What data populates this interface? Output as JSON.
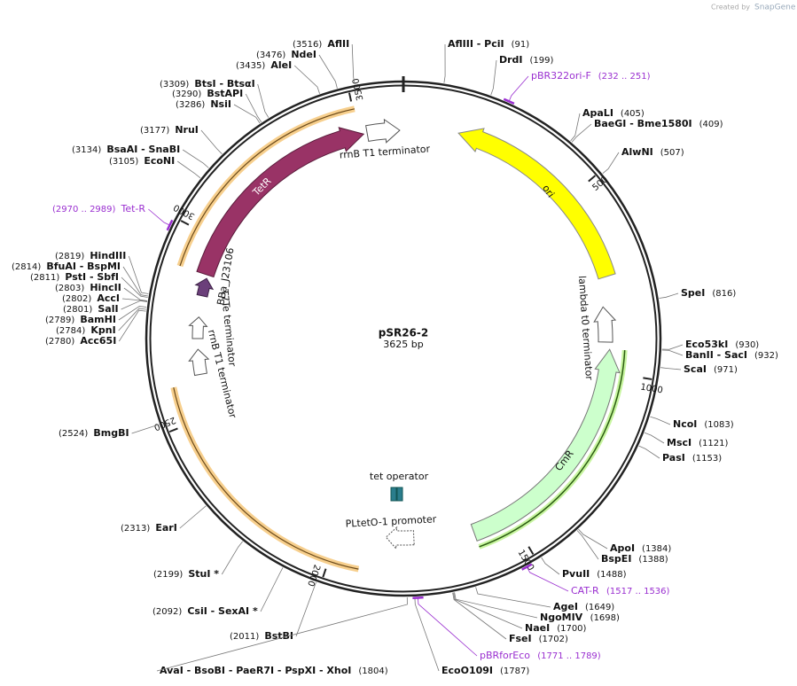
{
  "header": {
    "watermark": "Created by",
    "brand": "SnapGene"
  },
  "map": {
    "name": "pSR26-2",
    "length": "3625 bp",
    "ticks": [
      500,
      1000,
      1500,
      2000,
      2500,
      3000,
      3500
    ],
    "sites": [
      {
        "name": "AflII",
        "position": "(3516)"
      },
      {
        "name": "NdeI",
        "position": "(3476)"
      },
      {
        "name": "AleI",
        "position": "(3435)"
      },
      {
        "name": "BtsI   - BtsαI",
        "position": "(3309)"
      },
      {
        "name": "BstAPI",
        "position": "(3290)"
      },
      {
        "name": "NsiI",
        "position": "(3286)"
      },
      {
        "name": "NruI",
        "position": "(3177)"
      },
      {
        "name": "BsaAI   - SnaBI",
        "position": "(3134)"
      },
      {
        "name": "EcoNI",
        "position": "(3105)"
      },
      {
        "name": "HindIII",
        "position": "(2819)"
      },
      {
        "name": "BfuAI   - BspMI",
        "position": "(2814)"
      },
      {
        "name": "PstI   - SbfI",
        "position": "(2811)"
      },
      {
        "name": "HincII",
        "position": "(2803)"
      },
      {
        "name": "AccI",
        "position": "(2802)"
      },
      {
        "name": "SalI",
        "position": "(2801)"
      },
      {
        "name": "BamHI",
        "position": "(2789)"
      },
      {
        "name": "KpnI",
        "position": "(2784)"
      },
      {
        "name": "Acc65I",
        "position": "(2780)"
      },
      {
        "name": "BmgBI",
        "position": "(2524)"
      },
      {
        "name": "EarI",
        "position": "(2313)"
      },
      {
        "name": "StuI *",
        "position": "(2199)"
      },
      {
        "name": "CsiI   - SexAI *",
        "position": "(2092)"
      },
      {
        "name": "BstBI",
        "position": "(2011)"
      },
      {
        "name": "AvaI   - BsoBI   - PaeR7I   - PspXI   - XhoI",
        "position": "(1804)"
      },
      {
        "name": "EcoO109I",
        "position": "(1787)"
      },
      {
        "name": "FseI",
        "position": "(1702)"
      },
      {
        "name": "NaeI",
        "position": "(1700)"
      },
      {
        "name": "NgoMIV",
        "position": "(1698)"
      },
      {
        "name": "AgeI",
        "position": "(1649)"
      },
      {
        "name": "PvuII",
        "position": "(1488)"
      },
      {
        "name": "BspEI",
        "position": "(1388)"
      },
      {
        "name": "ApoI",
        "position": "(1384)"
      },
      {
        "name": "PasI",
        "position": "(1153)"
      },
      {
        "name": "MscI",
        "position": "(1121)"
      },
      {
        "name": "NcoI",
        "position": "(1083)"
      },
      {
        "name": "ScaI",
        "position": "(971)"
      },
      {
        "name": "BanII   - SacI",
        "position": "(932)"
      },
      {
        "name": "Eco53kI",
        "position": "(930)"
      },
      {
        "name": "SpeI",
        "position": "(816)"
      },
      {
        "name": "AlwNI",
        "position": "(507)"
      },
      {
        "name": "BaeGI   - Bme1580I",
        "position": "(409)"
      },
      {
        "name": "ApaLI",
        "position": "(405)"
      },
      {
        "name": "DrdI",
        "position": "(199)"
      },
      {
        "name": "AflIII   - PciI",
        "position": "(91)"
      }
    ],
    "primers": [
      {
        "name": "Tet-R",
        "range": "(2970 .. 2989)"
      },
      {
        "name": "pBRforEco",
        "range": "(1771 .. 1789)"
      },
      {
        "name": "CAT-R",
        "range": "(1517 .. 1536)"
      },
      {
        "name": "pBR322ori-F",
        "range": "(232 .. 251)"
      }
    ],
    "features": [
      {
        "label": "ori"
      },
      {
        "label": "CmR"
      },
      {
        "label": "TetR"
      },
      {
        "label": "rrnB T1 terminator"
      },
      {
        "label": "lambda t0 terminator"
      },
      {
        "label": "BBa_J23106"
      },
      {
        "label": "T7Te terminator"
      },
      {
        "label": "rrnB T1 terminator"
      },
      {
        "label": "tet operator"
      },
      {
        "label": "PLtetO-1 promoter"
      }
    ]
  }
}
